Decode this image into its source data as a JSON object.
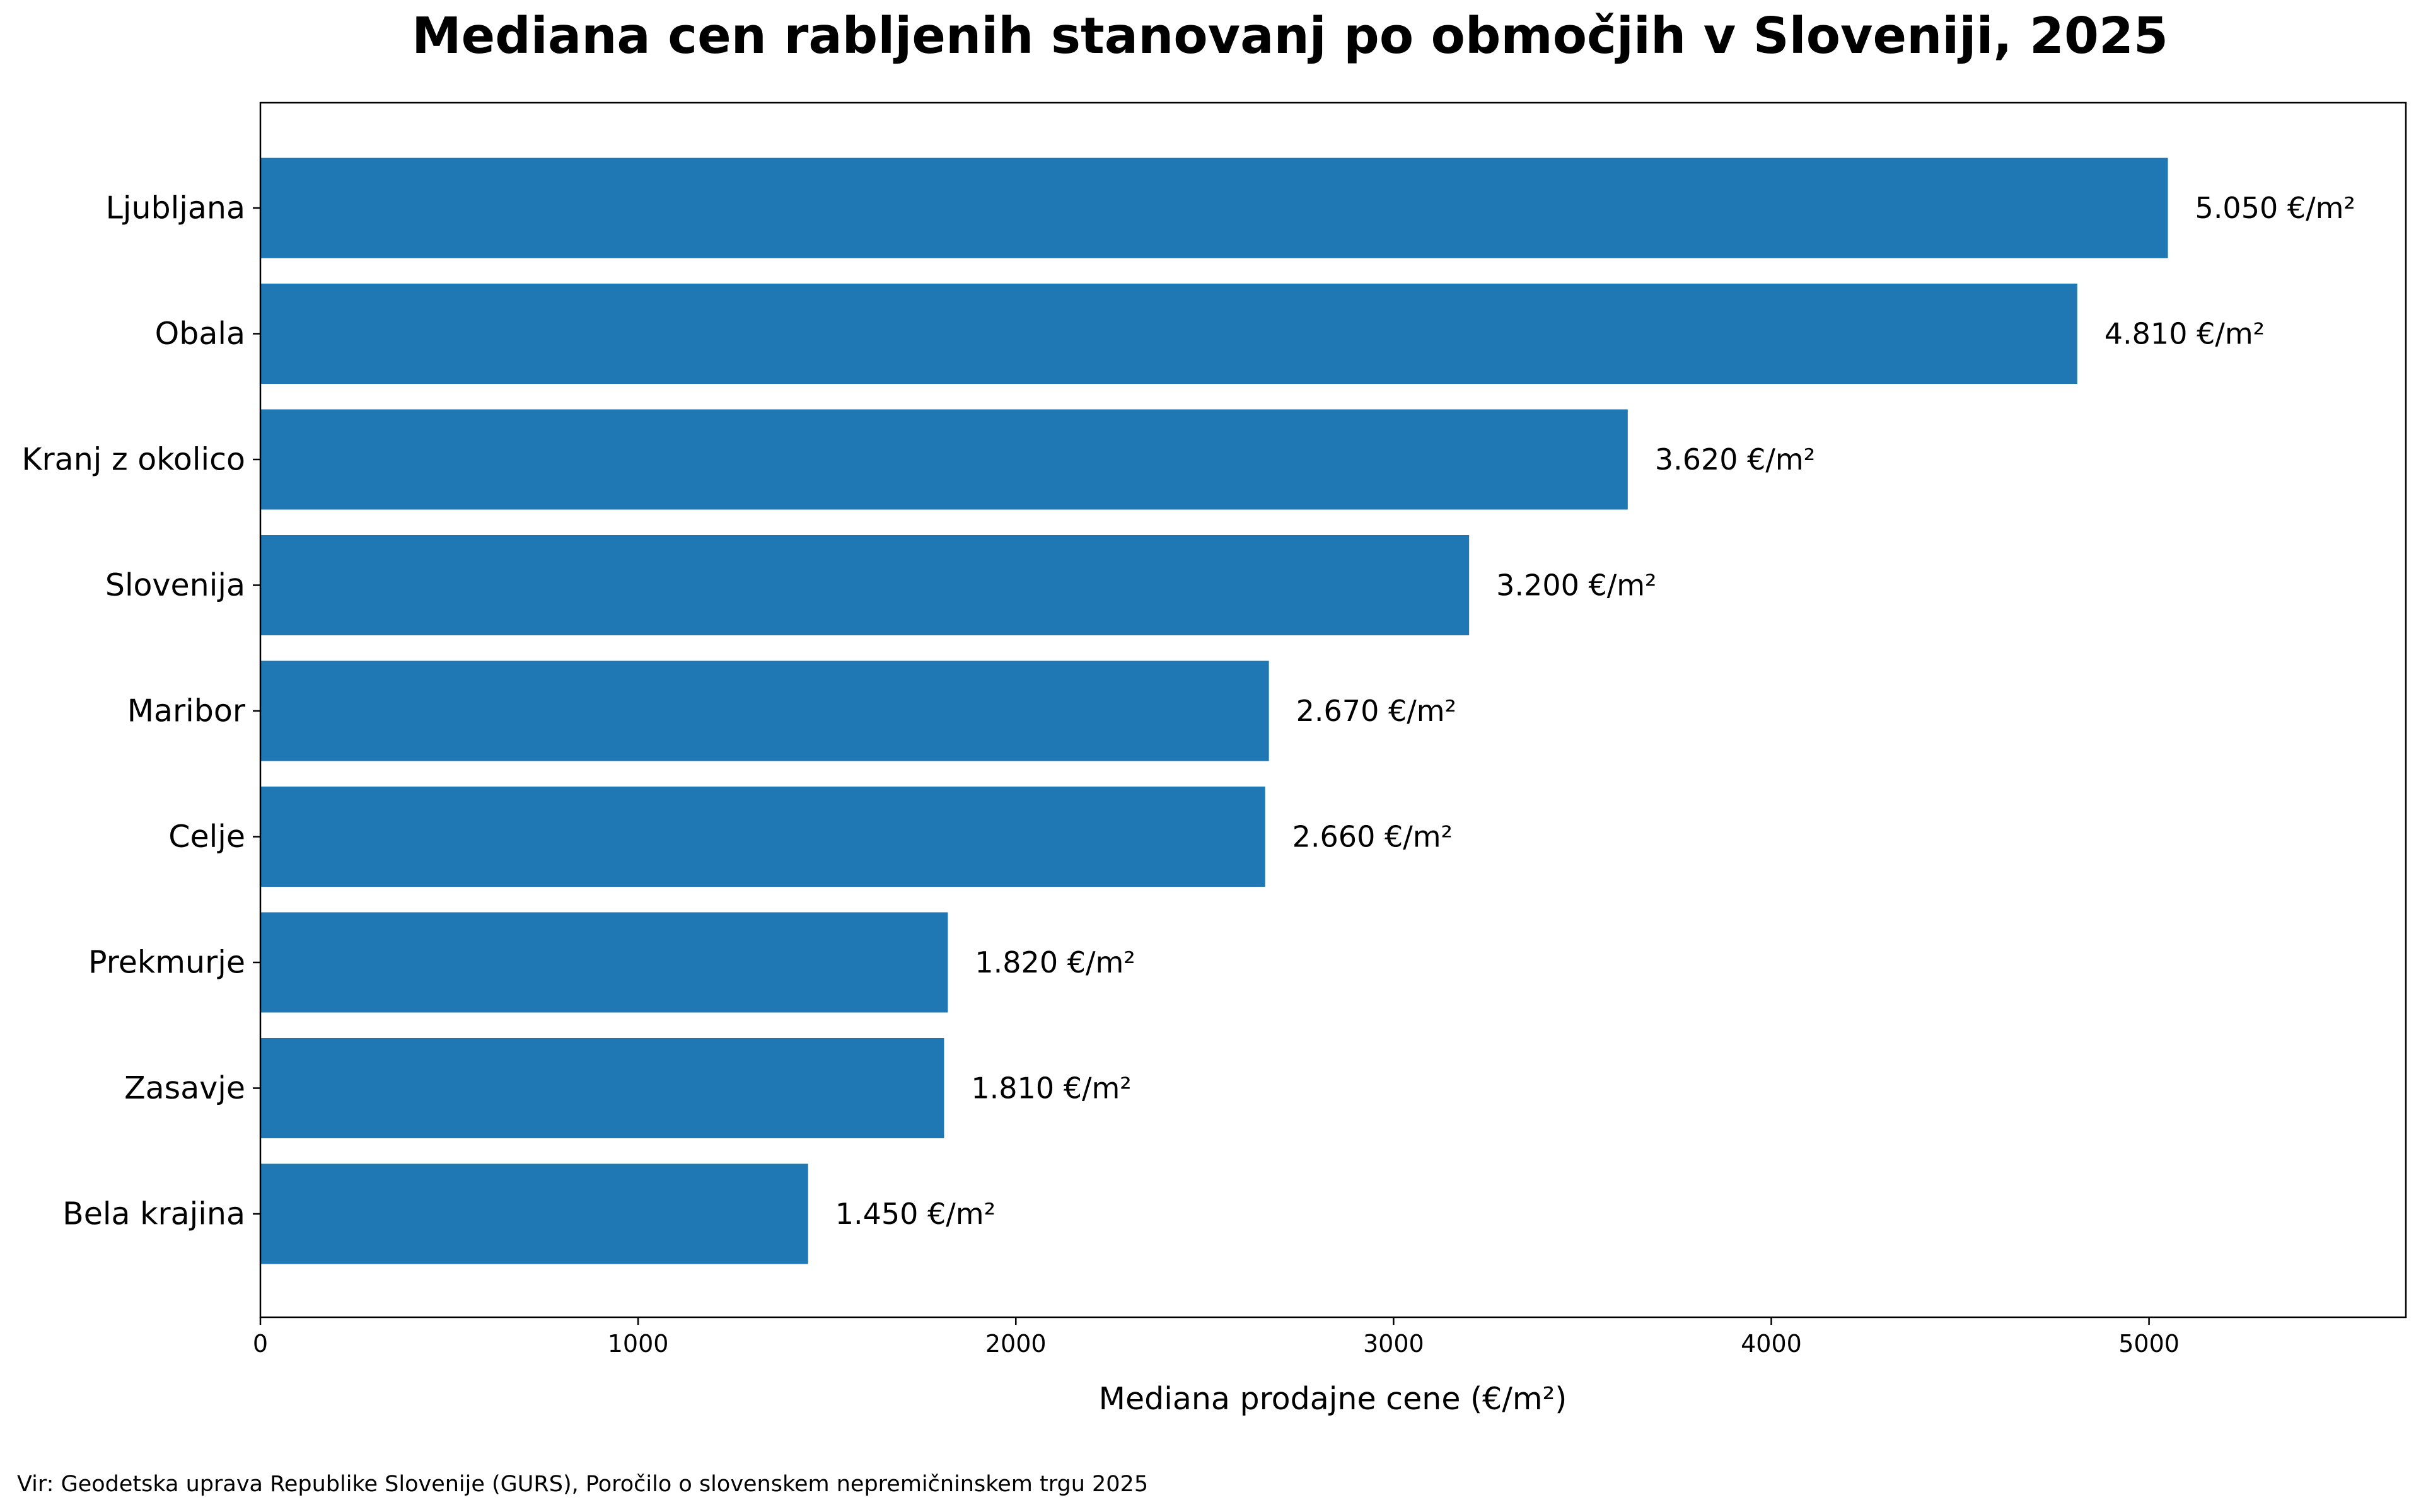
{
  "chart_data": {
    "type": "bar",
    "orientation": "horizontal",
    "title": "Mediana cen rabljenih stanovanj po območjih v Sloveniji, 2025",
    "xlabel": "Mediana prodajne cene (€/m²)",
    "ylabel": "",
    "xlim": [
      0,
      5680
    ],
    "x_ticks": [
      "0",
      "1000",
      "2000",
      "3000",
      "4000",
      "5000"
    ],
    "grid": false,
    "bar_color": "#1f77b4",
    "categories": [
      "Ljubljana",
      "Obala",
      "Kranj z okolico",
      "Slovenija",
      "Maribor",
      "Celje",
      "Prekmurje",
      "Zasavje",
      "Bela krajina"
    ],
    "values": [
      5050,
      4810,
      3620,
      3200,
      2670,
      2660,
      1820,
      1810,
      1450
    ],
    "value_labels": [
      "5.050 €/m²",
      "4.810 €/m²",
      "3.620 €/m²",
      "3.200 €/m²",
      "2.670 €/m²",
      "2.660 €/m²",
      "1.820 €/m²",
      "1.810 €/m²",
      "1.450 €/m²"
    ]
  },
  "source_note": "Vir: Geodetska uprava Republike Slovenije (GURS), Poročilo o slovenskem nepremičninskem trgu 2025"
}
